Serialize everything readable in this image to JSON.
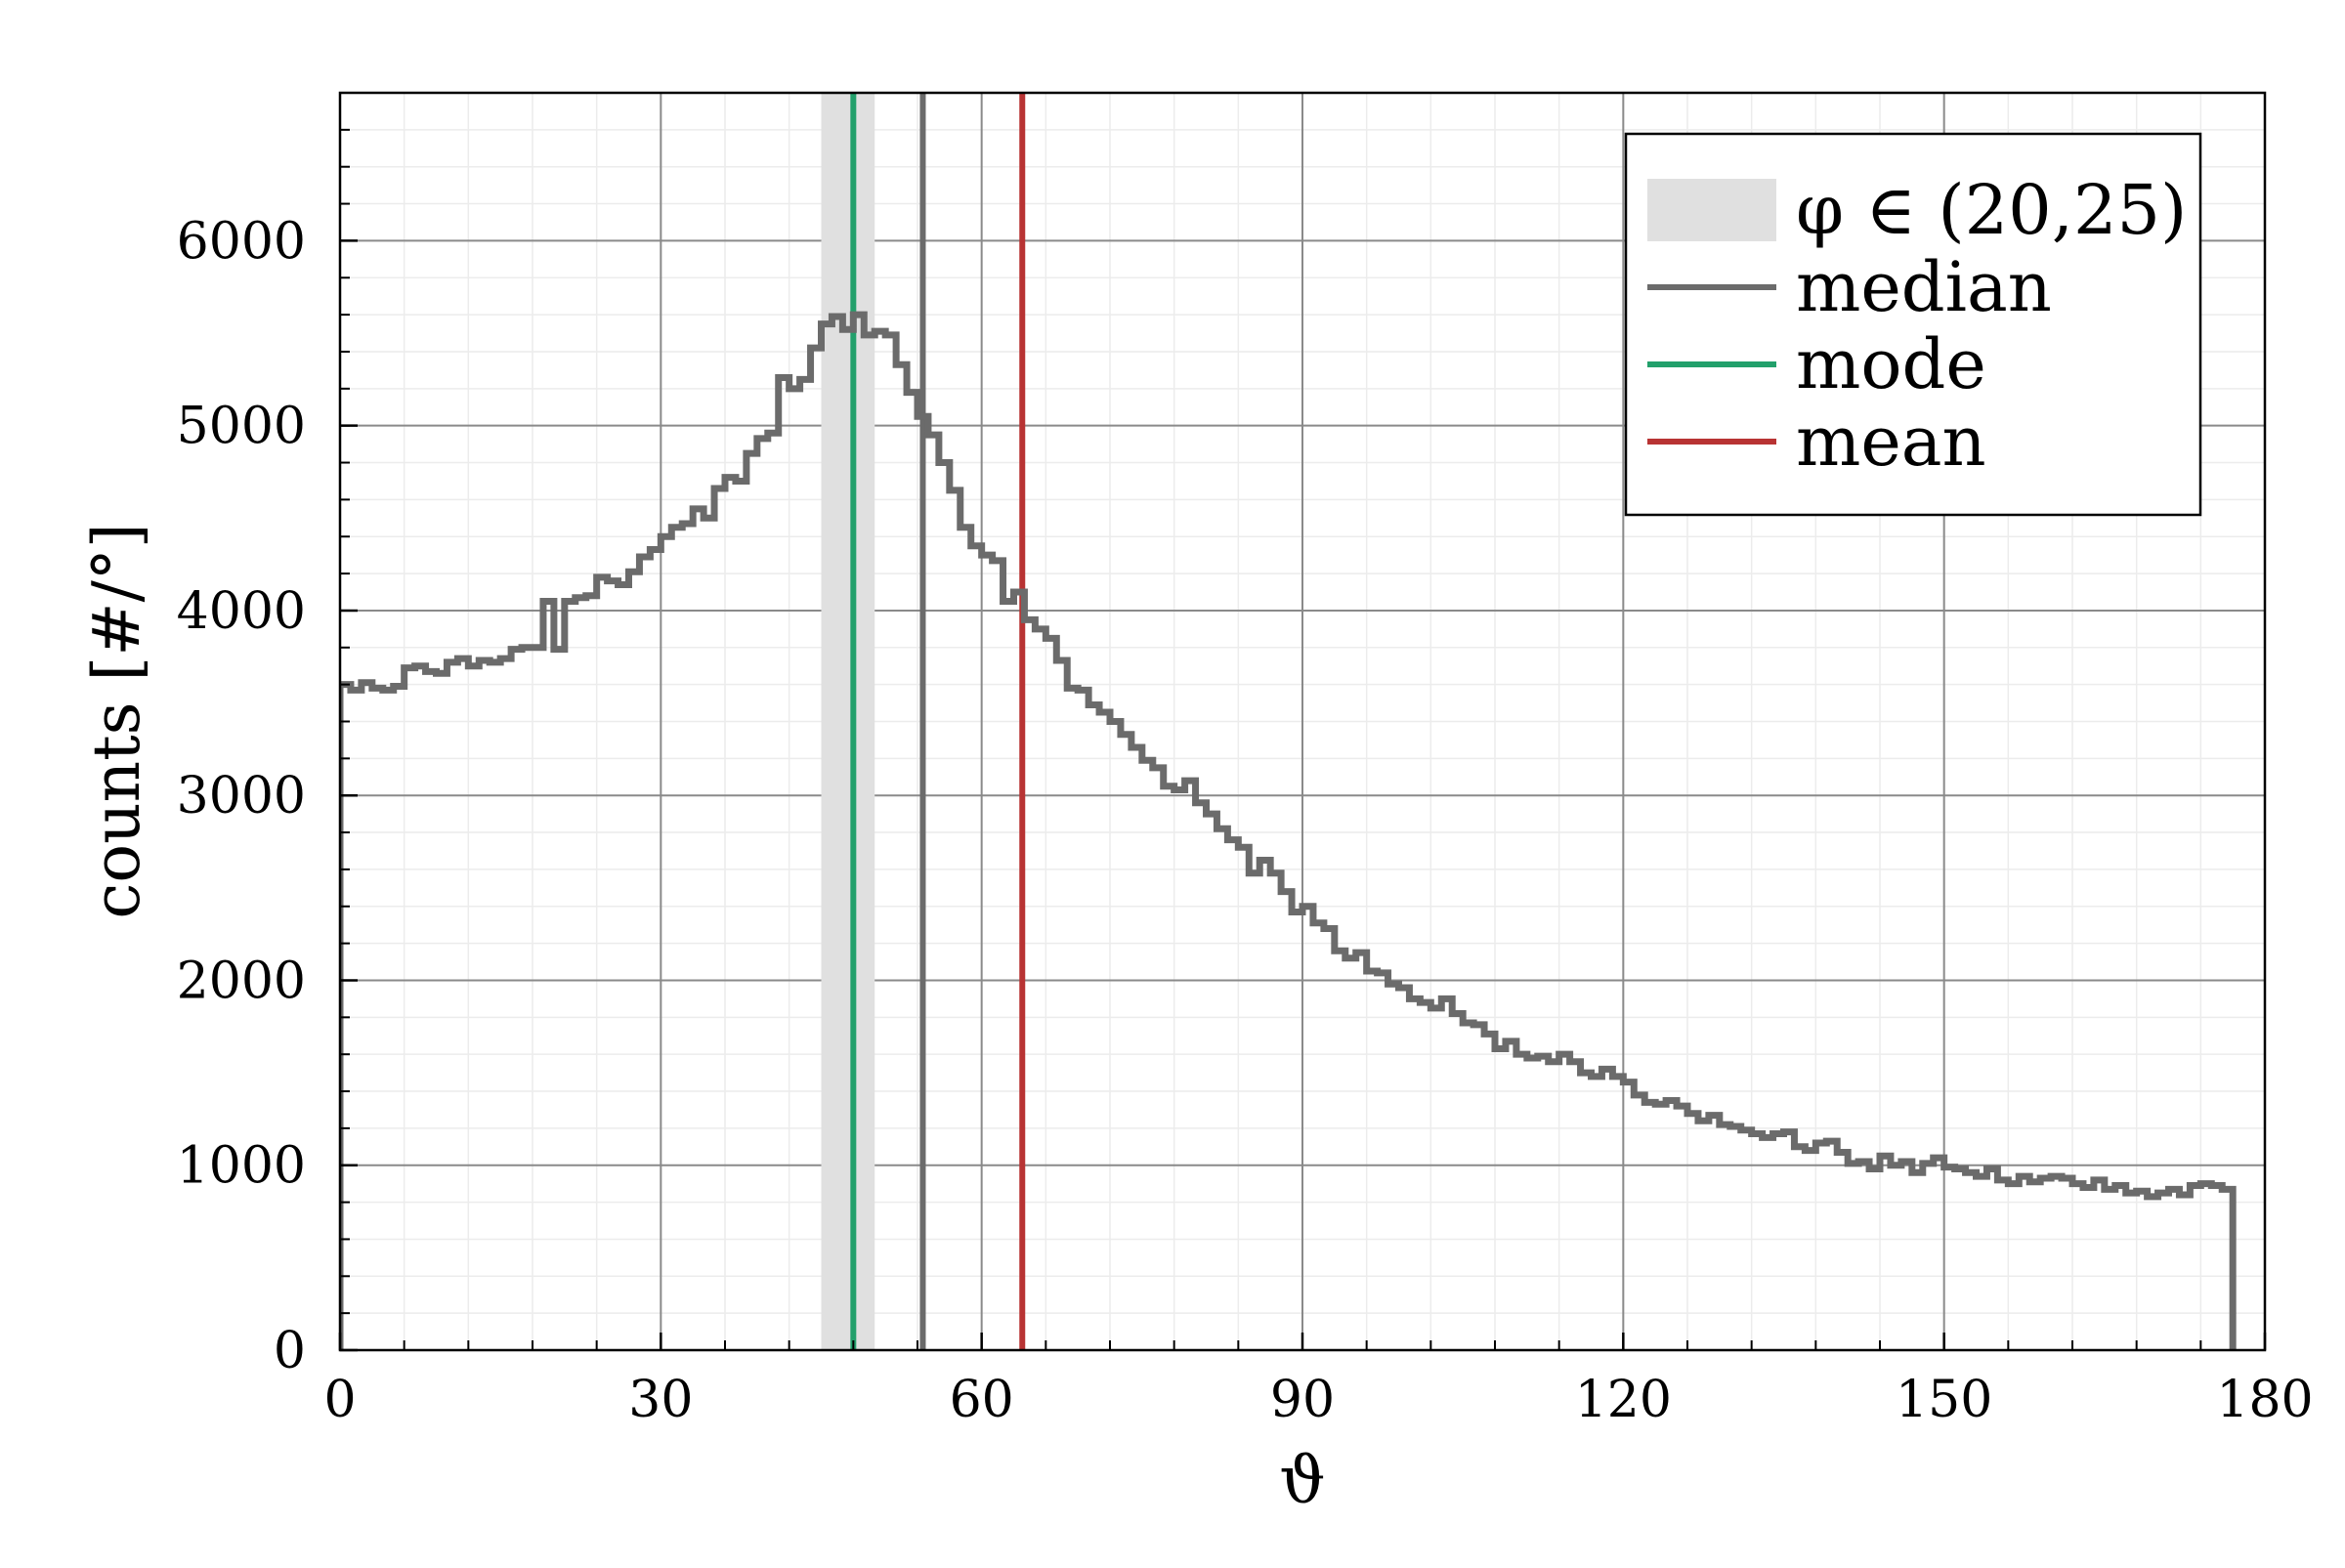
{
  "chart_data": {
    "type": "line",
    "subtype": "step-histogram",
    "title": "",
    "xlabel": "ϑ",
    "ylabel": "counts [#/°]",
    "xlim": [
      0,
      180
    ],
    "ylim": [
      0,
      6800
    ],
    "xticks": [
      0,
      30,
      60,
      90,
      120,
      150,
      180
    ],
    "xtick_labels": [
      "0",
      "30",
      "60",
      "90",
      "120",
      "150",
      "180"
    ],
    "yticks": [
      0,
      1000,
      2000,
      3000,
      4000,
      5000,
      6000
    ],
    "ytick_labels": [
      "0",
      "1000",
      "2000",
      "3000",
      "4000",
      "5000",
      "6000"
    ],
    "grid": true,
    "minor_grid": true,
    "legend_position": "top-right",
    "bin_width": 1,
    "series": [
      {
        "name": "histogram",
        "color": "#6b6b6b",
        "bin_start": 0,
        "bin_width": 1,
        "values": [
          3600,
          3570,
          3610,
          3580,
          3570,
          3590,
          3690,
          3700,
          3670,
          3660,
          3720,
          3740,
          3700,
          3730,
          3720,
          3740,
          3790,
          3800,
          3800,
          4050,
          3790,
          4050,
          4070,
          4080,
          4180,
          4160,
          4140,
          4210,
          4290,
          4330,
          4400,
          4450,
          4470,
          4550,
          4500,
          4660,
          4720,
          4700,
          4850,
          4930,
          4960,
          5260,
          5200,
          5250,
          5420,
          5550,
          5590,
          5520,
          5600,
          5490,
          5510,
          5490,
          5330,
          5180,
          5050,
          4950,
          4800,
          4650,
          4450,
          4350,
          4300,
          4270,
          4050,
          4100,
          3950,
          3900,
          3850,
          3730,
          3580,
          3570,
          3490,
          3450,
          3400,
          3330,
          3260,
          3190,
          3150,
          3050,
          3030,
          3080,
          2960,
          2900,
          2820,
          2760,
          2720,
          2580,
          2650,
          2580,
          2480,
          2370,
          2400,
          2310,
          2280,
          2160,
          2120,
          2150,
          2050,
          2040,
          1980,
          1960,
          1900,
          1880,
          1850,
          1900,
          1820,
          1770,
          1760,
          1710,
          1630,
          1670,
          1600,
          1580,
          1590,
          1560,
          1600,
          1560,
          1500,
          1480,
          1520,
          1480,
          1450,
          1380,
          1340,
          1330,
          1350,
          1320,
          1280,
          1240,
          1270,
          1220,
          1210,
          1190,
          1170,
          1150,
          1170,
          1180,
          1100,
          1080,
          1120,
          1130,
          1070,
          1010,
          1020,
          980,
          1050,
          1000,
          1020,
          960,
          1010,
          1040,
          990,
          980,
          960,
          940,
          980,
          920,
          900,
          940,
          910,
          930,
          940,
          930,
          900,
          880,
          920,
          870,
          890,
          850,
          860,
          830,
          850,
          870,
          840,
          890,
          900,
          890,
          870
        ]
      }
    ],
    "markers": {
      "band": {
        "label": "φ ∈ (20,25)",
        "x_start": 45,
        "x_end": 50,
        "color": "#e0e0e0"
      },
      "median": {
        "label": "median",
        "x": 54.5,
        "color": "#6b6b6b"
      },
      "mode": {
        "label": "mode",
        "x": 48,
        "color": "#22a06b"
      },
      "mean": {
        "label": "mean",
        "x": 63.8,
        "color": "#b83333"
      }
    },
    "legend": [
      {
        "label": "φ ∈ (20,25)",
        "kind": "band",
        "color": "#e0e0e0"
      },
      {
        "label": "median",
        "kind": "line",
        "color": "#6b6b6b"
      },
      {
        "label": "mode",
        "kind": "line",
        "color": "#22a06b"
      },
      {
        "label": "mean",
        "kind": "line",
        "color": "#b83333"
      }
    ]
  }
}
